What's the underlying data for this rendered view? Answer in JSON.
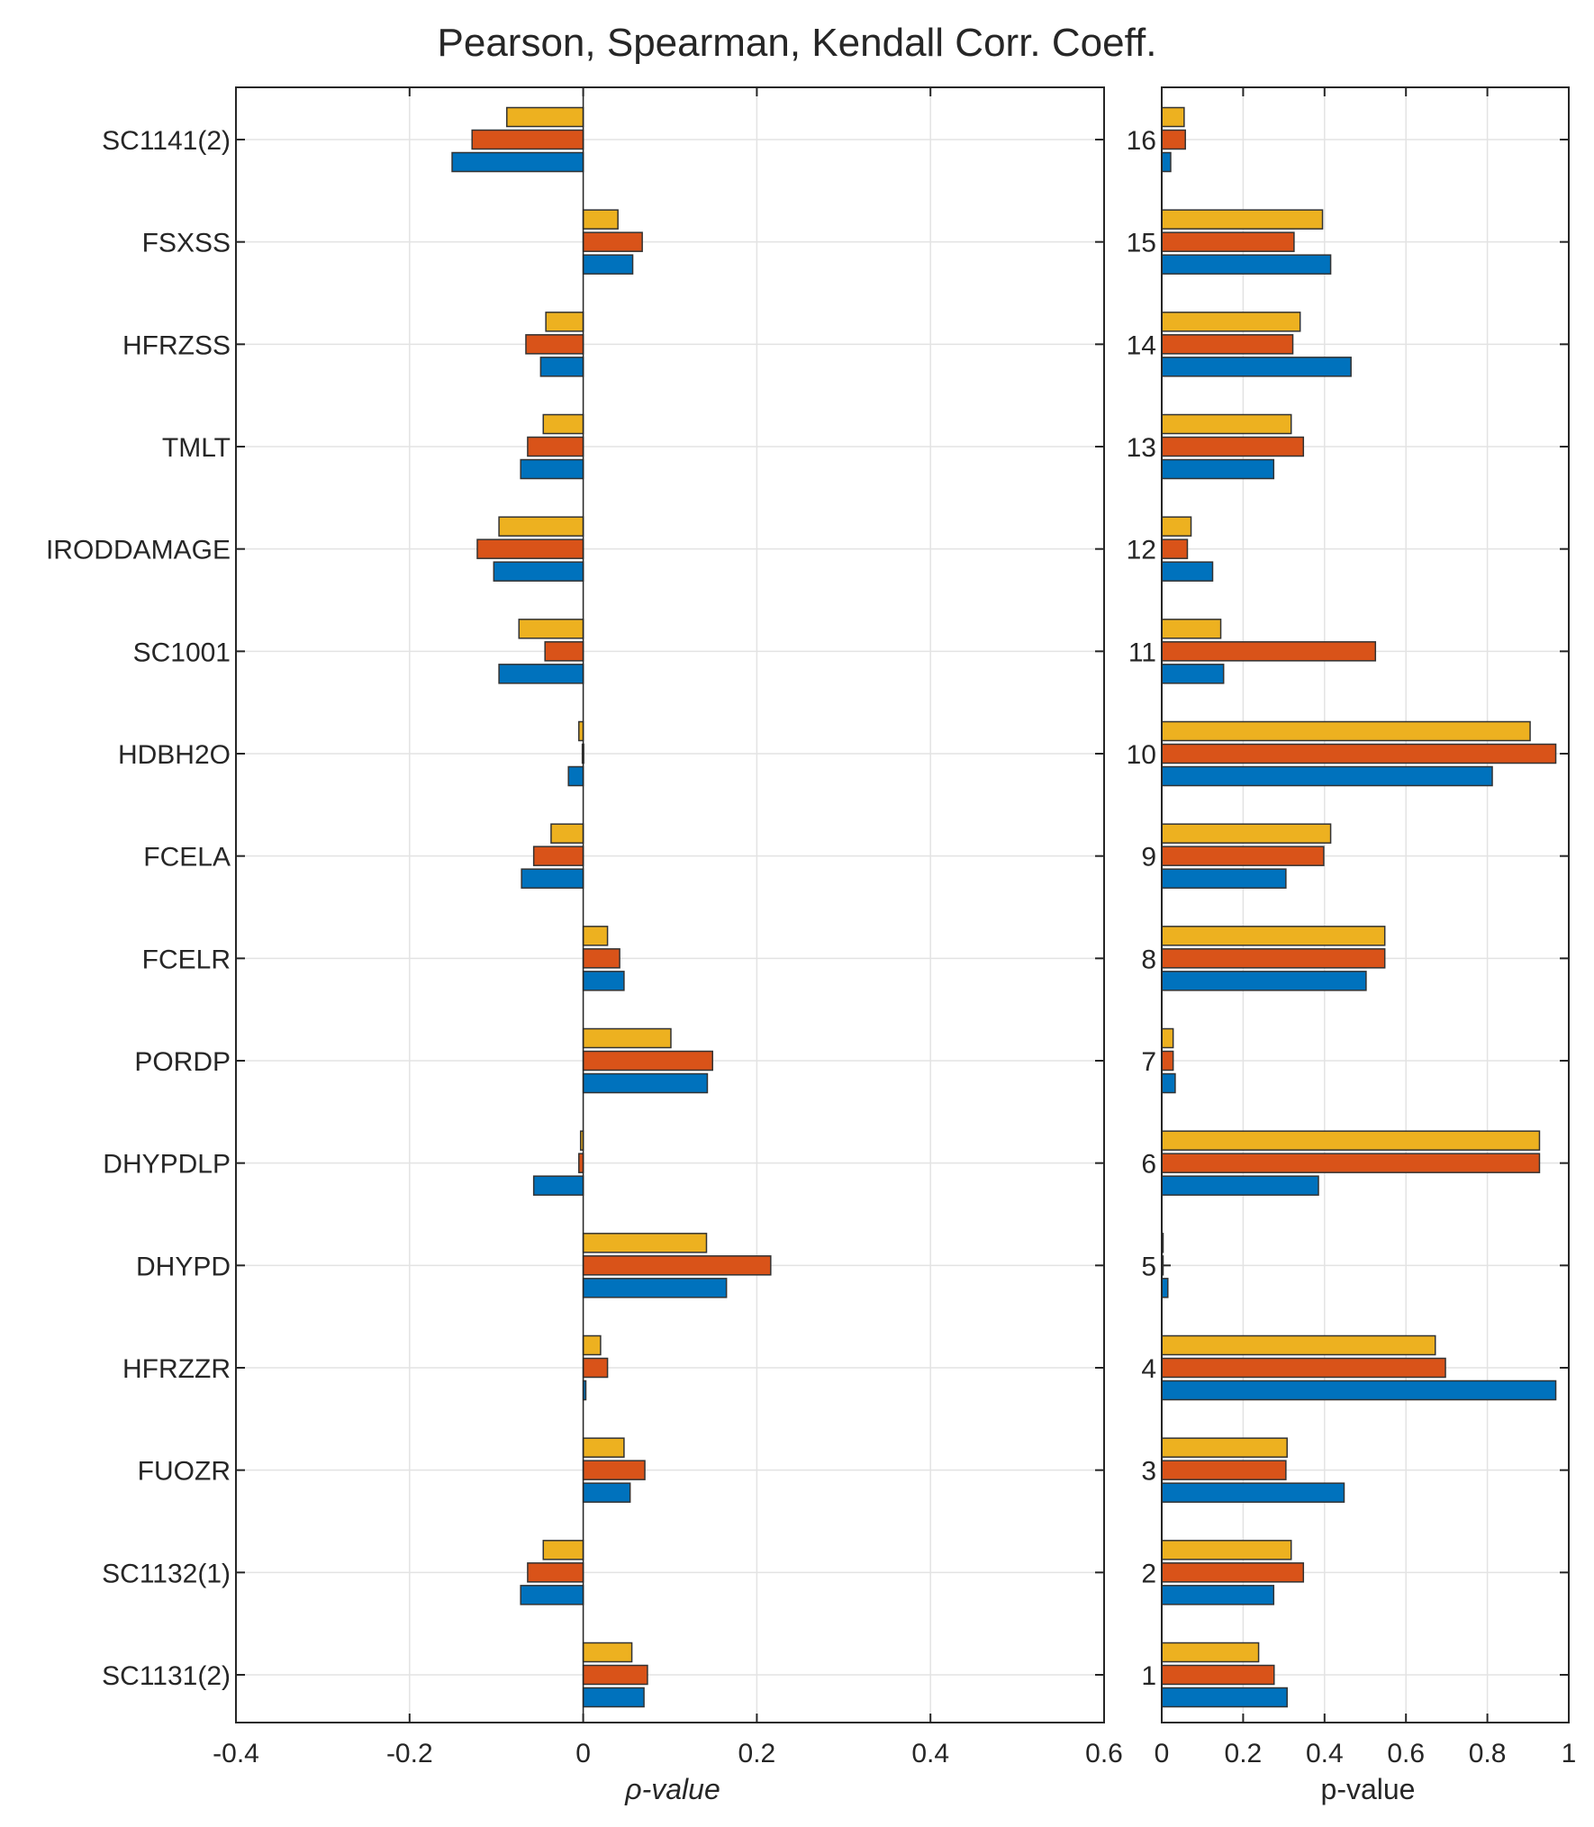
{
  "chart_data": {
    "type": "bar",
    "orientation": "horizontal",
    "title": "Pearson, Spearman, Kendall Corr. Coeff.",
    "series_colors": [
      "#EDB120",
      "#D95319",
      "#0072BD"
    ],
    "panels": [
      {
        "id": "rho",
        "xlabel": "ρ-value",
        "xlim": [
          -0.4,
          0.6
        ],
        "xticks": [
          -0.4,
          -0.2,
          0,
          0.2,
          0.4,
          0.6
        ],
        "xtick_labels": [
          "-0.4",
          "-0.2",
          "0",
          "0.2",
          "0.4",
          "0.6"
        ],
        "categories": [
          "SC1141(2)",
          "FSXSS",
          "HFRZSS",
          "TMLT",
          "IRODDAMAGE",
          "SC1001",
          "HDBH2O",
          "FCELA",
          "FCELR",
          "PORDP",
          "DHYPDLP",
          "DHYPD",
          "HFRZZR",
          "FUOZR",
          "SC1132(1)",
          "SC1131(2)"
        ],
        "series": [
          {
            "color": "#EDB120",
            "values": [
              -0.088,
              0.04,
              -0.043,
              -0.046,
              -0.097,
              -0.074,
              -0.005,
              -0.037,
              0.028,
              0.101,
              -0.003,
              0.142,
              0.02,
              0.047,
              -0.046,
              0.056
            ]
          },
          {
            "color": "#D95319",
            "values": [
              -0.128,
              0.068,
              -0.066,
              -0.064,
              -0.122,
              -0.044,
              -0.001,
              -0.057,
              0.042,
              0.149,
              -0.005,
              0.216,
              0.028,
              0.071,
              -0.064,
              0.074
            ]
          },
          {
            "color": "#0072BD",
            "values": [
              -0.151,
              0.057,
              -0.049,
              -0.072,
              -0.103,
              -0.097,
              -0.017,
              -0.071,
              0.047,
              0.143,
              -0.057,
              0.165,
              0.003,
              0.054,
              -0.072,
              0.07
            ]
          }
        ]
      },
      {
        "id": "p",
        "xlabel": "p-value",
        "xlim": [
          0,
          1
        ],
        "xticks": [
          0,
          0.2,
          0.4,
          0.6,
          0.8,
          1
        ],
        "xtick_labels": [
          "0",
          "0.2",
          "0.4",
          "0.6",
          "0.8",
          "1"
        ],
        "categories": [
          "16",
          "15",
          "14",
          "13",
          "12",
          "11",
          "10",
          "9",
          "8",
          "7",
          "6",
          "5",
          "4",
          "3",
          "2",
          "1"
        ],
        "series": [
          {
            "color": "#EDB120",
            "values": [
              0.055,
              0.395,
              0.34,
              0.318,
              0.072,
              0.145,
              0.905,
              0.415,
              0.548,
              0.028,
              0.928,
              0.0,
              0.672,
              0.308,
              0.318,
              0.238
            ]
          },
          {
            "color": "#D95319",
            "values": [
              0.058,
              0.325,
              0.322,
              0.348,
              0.063,
              0.525,
              0.968,
              0.398,
              0.548,
              0.028,
              0.928,
              0.0,
              0.697,
              0.305,
              0.348,
              0.276
            ]
          },
          {
            "color": "#0072BD",
            "values": [
              0.022,
              0.415,
              0.465,
              0.275,
              0.125,
              0.152,
              0.812,
              0.305,
              0.502,
              0.033,
              0.385,
              0.015,
              0.968,
              0.448,
              0.275,
              0.308
            ]
          }
        ]
      }
    ]
  }
}
